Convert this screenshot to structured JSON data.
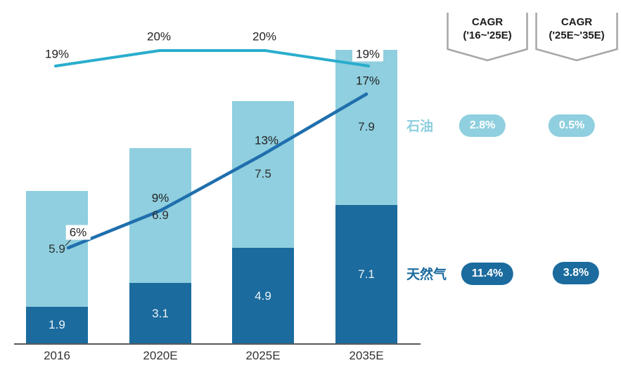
{
  "chart_data": {
    "type": "bar",
    "subtype": "stacked-bar-with-share-lines",
    "categories": [
      "2016",
      "2020E",
      "2025E",
      "2035E"
    ],
    "series": [
      {
        "key": "gas",
        "name": "天然气",
        "kind": "bar",
        "stack_order": 0,
        "color": "#1b6b9e",
        "label_color": "#eef3f6",
        "values": [
          1.9,
          3.1,
          4.9,
          7.1
        ]
      },
      {
        "key": "oil",
        "name": "石油",
        "kind": "bar",
        "stack_order": 1,
        "color": "#8fcfdf",
        "label_color": "#2e2e2e",
        "values": [
          5.9,
          6.9,
          7.5,
          7.9
        ]
      },
      {
        "key": "oil-share-line",
        "kind": "line",
        "color": "#29adcd",
        "values_percent": [
          19,
          20,
          20,
          19
        ],
        "labels": [
          "19%",
          "20%",
          "20%",
          "19%"
        ]
      },
      {
        "key": "gas-share-line",
        "kind": "line",
        "color": "#1f6fad",
        "values_percent": [
          6,
          9,
          13,
          17
        ],
        "labels": [
          "6%",
          "9%",
          "13%",
          "17%"
        ]
      }
    ],
    "ylim": [
      0,
      15
    ],
    "grid": false,
    "legend_position": "right"
  },
  "cagr_panel": {
    "columns": [
      {
        "line1": "CAGR",
        "line2": "('16~'25E)"
      },
      {
        "line1": "CAGR",
        "line2": "('25E~'35E)"
      }
    ],
    "rows": [
      {
        "key": "oil",
        "label": "石油",
        "pill_color": "#8fcfdf",
        "values": [
          "2.8%",
          "0.5%"
        ]
      },
      {
        "key": "gas",
        "label": "天然气",
        "pill_color": "#1b6b9e",
        "values": [
          "11.4%",
          "3.8%"
        ]
      }
    ],
    "border_color": "#a6a6a6"
  },
  "axis": {
    "color": "#595959"
  }
}
